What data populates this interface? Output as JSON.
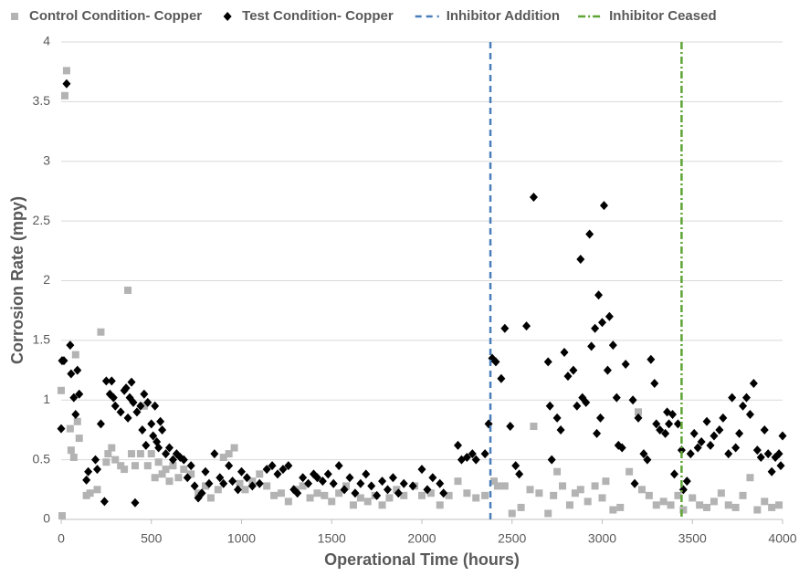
{
  "chart_data": {
    "type": "scatter",
    "x_label": "Operational Time (hours)",
    "y_label": "Corrosion Rate (mpy)",
    "xlim": [
      0,
      4000
    ],
    "xticks": [
      0,
      500,
      1000,
      1500,
      2000,
      2500,
      3000,
      3500,
      4000
    ],
    "ylim": [
      0,
      4
    ],
    "yticks": [
      0,
      0.5,
      1,
      1.5,
      2,
      2.5,
      3,
      3.5,
      4
    ],
    "grid": true,
    "legend": "top",
    "series": [
      {
        "name": "Control Condition- Copper",
        "color": "#b3b3b3",
        "marker": "square",
        "x": [
          0,
          5,
          20,
          30,
          50,
          55,
          70,
          80,
          90,
          100,
          140,
          160,
          200,
          220,
          250,
          260,
          280,
          300,
          330,
          350,
          370,
          390,
          410,
          440,
          460,
          480,
          500,
          520,
          540,
          560,
          580,
          600,
          620,
          650,
          680,
          720,
          760,
          800,
          830,
          870,
          900,
          930,
          960,
          990,
          1020,
          1060,
          1100,
          1140,
          1180,
          1220,
          1260,
          1300,
          1340,
          1380,
          1420,
          1460,
          1500,
          1540,
          1580,
          1620,
          1660,
          1700,
          1740,
          1780,
          1820,
          1860,
          1900,
          1960,
          2000,
          2050,
          2100,
          2150,
          2200,
          2250,
          2300,
          2350,
          2400,
          2420,
          2460,
          2500,
          2550,
          2600,
          2620,
          2650,
          2700,
          2730,
          2750,
          2780,
          2820,
          2850,
          2880,
          2920,
          2960,
          3000,
          3020,
          3060,
          3100,
          3150,
          3200,
          3220,
          3260,
          3300,
          3340,
          3380,
          3420,
          3450,
          3500,
          3540,
          3580,
          3620,
          3660,
          3700,
          3740,
          3780,
          3820,
          3860,
          3900,
          3940,
          3980
        ],
        "values": [
          1.08,
          0.03,
          3.55,
          3.76,
          0.76,
          0.58,
          0.52,
          1.38,
          0.82,
          0.68,
          0.2,
          0.22,
          0.25,
          1.57,
          0.48,
          0.55,
          0.6,
          0.5,
          0.45,
          0.42,
          1.92,
          0.55,
          0.45,
          0.55,
          0.95,
          0.45,
          0.55,
          0.35,
          0.48,
          0.38,
          0.42,
          0.32,
          0.45,
          0.35,
          0.42,
          0.38,
          0.22,
          0.28,
          0.18,
          0.25,
          0.52,
          0.55,
          0.6,
          0.3,
          0.25,
          0.32,
          0.38,
          0.28,
          0.2,
          0.22,
          0.15,
          0.25,
          0.28,
          0.18,
          0.22,
          0.2,
          0.15,
          0.22,
          0.28,
          0.12,
          0.18,
          0.15,
          0.2,
          0.12,
          0.18,
          0.25,
          0.2,
          0.28,
          0.2,
          0.22,
          0.12,
          0.2,
          0.32,
          0.22,
          0.18,
          0.2,
          0.32,
          0.28,
          0.28,
          0.05,
          0.1,
          0.25,
          0.78,
          0.22,
          0.05,
          0.2,
          0.4,
          0.28,
          0.12,
          0.22,
          0.25,
          0.15,
          0.28,
          0.18,
          0.32,
          0.08,
          0.1,
          0.4,
          0.9,
          0.25,
          0.2,
          0.12,
          0.15,
          0.12,
          0.2,
          0.08,
          0.18,
          0.12,
          0.1,
          0.15,
          0.22,
          0.12,
          0.1,
          0.2,
          0.35,
          0.08,
          0.15,
          0.1,
          0.12
        ]
      },
      {
        "name": "Test Condition- Copper",
        "color": "#000000",
        "marker": "diamond",
        "x": [
          0,
          5,
          15,
          30,
          50,
          55,
          70,
          80,
          90,
          100,
          140,
          150,
          190,
          200,
          220,
          240,
          250,
          270,
          280,
          290,
          300,
          330,
          350,
          360,
          370,
          380,
          390,
          400,
          410,
          420,
          440,
          450,
          460,
          470,
          480,
          500,
          510,
          520,
          530,
          540,
          550,
          560,
          580,
          600,
          620,
          640,
          660,
          680,
          700,
          720,
          740,
          760,
          780,
          800,
          820,
          850,
          880,
          900,
          930,
          950,
          980,
          1000,
          1030,
          1060,
          1100,
          1140,
          1170,
          1200,
          1230,
          1260,
          1290,
          1310,
          1340,
          1370,
          1400,
          1420,
          1450,
          1480,
          1510,
          1540,
          1570,
          1600,
          1630,
          1660,
          1690,
          1720,
          1750,
          1780,
          1810,
          1840,
          1870,
          1900,
          1950,
          2000,
          2030,
          2060,
          2100,
          2120,
          2200,
          2220,
          2250,
          2280,
          2300,
          2350,
          2370,
          2390,
          2410,
          2440,
          2460,
          2490,
          2520,
          2540,
          2580,
          2620,
          2700,
          2710,
          2720,
          2750,
          2770,
          2790,
          2810,
          2840,
          2860,
          2880,
          2890,
          2910,
          2930,
          2940,
          2960,
          2970,
          2980,
          2990,
          3000,
          3010,
          3030,
          3040,
          3060,
          3080,
          3090,
          3110,
          3130,
          3170,
          3180,
          3200,
          3230,
          3250,
          3270,
          3290,
          3300,
          3320,
          3350,
          3360,
          3370,
          3390,
          3400,
          3420,
          3440,
          3450,
          3470,
          3490,
          3510,
          3530,
          3550,
          3580,
          3600,
          3620,
          3650,
          3670,
          3700,
          3720,
          3740,
          3760,
          3780,
          3800,
          3820,
          3840,
          3860,
          3880,
          3900,
          3920,
          3940,
          3960,
          3980,
          3990,
          4000
        ],
        "values": [
          0.76,
          1.33,
          1.33,
          3.65,
          1.46,
          1.22,
          1.02,
          0.88,
          1.25,
          1.05,
          0.33,
          0.4,
          0.5,
          0.42,
          0.8,
          0.15,
          1.16,
          1.05,
          1.16,
          1.02,
          0.95,
          0.9,
          1.08,
          1.1,
          0.85,
          1.02,
          1.15,
          0.98,
          0.14,
          0.9,
          0.95,
          0.75,
          1.05,
          0.62,
          0.98,
          0.8,
          0.7,
          0.95,
          0.65,
          0.6,
          0.82,
          0.75,
          0.55,
          0.6,
          0.5,
          0.55,
          0.52,
          0.5,
          0.35,
          0.45,
          0.28,
          0.18,
          0.22,
          0.4,
          0.3,
          0.55,
          0.35,
          0.3,
          0.45,
          0.32,
          0.25,
          0.4,
          0.35,
          0.28,
          0.3,
          0.42,
          0.45,
          0.38,
          0.42,
          0.45,
          0.25,
          0.22,
          0.35,
          0.3,
          0.38,
          0.35,
          0.32,
          0.38,
          0.3,
          0.45,
          0.25,
          0.35,
          0.22,
          0.3,
          0.38,
          0.28,
          0.2,
          0.32,
          0.25,
          0.35,
          0.22,
          0.3,
          0.28,
          0.42,
          0.25,
          0.35,
          0.3,
          0.22,
          0.62,
          0.5,
          0.52,
          0.55,
          0.5,
          0.55,
          0.8,
          1.35,
          1.32,
          1.18,
          1.6,
          0.78,
          0.45,
          0.38,
          1.62,
          2.7,
          1.32,
          0.95,
          0.5,
          0.85,
          0.75,
          1.4,
          1.2,
          1.25,
          0.95,
          2.18,
          1.02,
          0.98,
          2.39,
          1.45,
          1.6,
          0.72,
          1.88,
          0.85,
          1.65,
          2.63,
          1.25,
          1.7,
          1.46,
          1.02,
          0.62,
          0.6,
          1.3,
          1.0,
          0.3,
          0.85,
          0.55,
          0.5,
          1.34,
          1.14,
          0.8,
          0.75,
          0.72,
          0.9,
          0.8,
          0.88,
          0.38,
          0.8,
          0.58,
          0.25,
          0.32,
          0.55,
          0.72,
          0.6,
          0.65,
          0.82,
          0.62,
          0.7,
          0.75,
          0.85,
          0.55,
          1.02,
          0.6,
          0.72,
          0.95,
          1.02,
          0.88,
          1.14,
          0.58,
          0.52,
          0.75,
          0.55,
          0.4,
          0.52,
          0.55,
          0.45,
          0.7
        ]
      }
    ],
    "vlines": [
      {
        "name": "Inhibitor Addition",
        "x": 2380,
        "color": "#4a7ebb",
        "dash": "7 5"
      },
      {
        "name": "Inhibitor Ceased",
        "x": 3440,
        "color": "#5fa536",
        "dash": "8 3 2 3"
      }
    ]
  }
}
